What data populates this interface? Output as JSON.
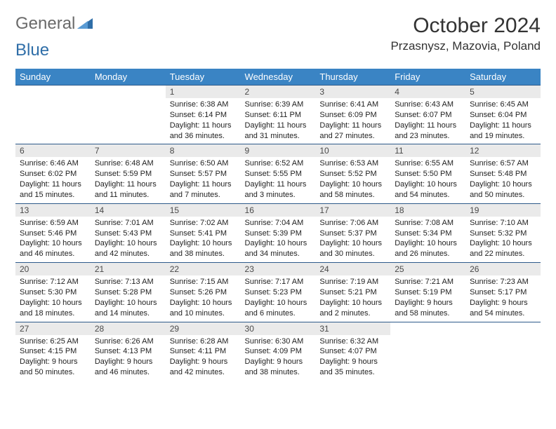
{
  "logo": {
    "text_part1": "General",
    "text_part2": "Blue",
    "color1": "#6a6a6a",
    "color2": "#2f6ea8",
    "triangle_color": "#2f6ea8"
  },
  "header": {
    "month_title": "October 2024",
    "location": "Przasnysz, Mazovia, Poland"
  },
  "colors": {
    "header_row_bg": "#3a84c4",
    "header_row_text": "#ffffff",
    "daynum_bg": "#eaeaea",
    "daynum_text": "#4a4a4a",
    "cell_border": "#2d5a8a",
    "body_text": "#222222",
    "background": "#ffffff"
  },
  "typography": {
    "month_title_fontsize": 30,
    "location_fontsize": 17,
    "header_row_fontsize": 13,
    "daynum_fontsize": 12,
    "daydata_fontsize": 11
  },
  "calendar": {
    "type": "table",
    "columns": [
      "Sunday",
      "Monday",
      "Tuesday",
      "Wednesday",
      "Thursday",
      "Friday",
      "Saturday"
    ],
    "weeks": [
      [
        null,
        null,
        {
          "day": "1",
          "sunrise": "6:38 AM",
          "sunset": "6:14 PM",
          "daylight": "11 hours and 36 minutes."
        },
        {
          "day": "2",
          "sunrise": "6:39 AM",
          "sunset": "6:11 PM",
          "daylight": "11 hours and 31 minutes."
        },
        {
          "day": "3",
          "sunrise": "6:41 AM",
          "sunset": "6:09 PM",
          "daylight": "11 hours and 27 minutes."
        },
        {
          "day": "4",
          "sunrise": "6:43 AM",
          "sunset": "6:07 PM",
          "daylight": "11 hours and 23 minutes."
        },
        {
          "day": "5",
          "sunrise": "6:45 AM",
          "sunset": "6:04 PM",
          "daylight": "11 hours and 19 minutes."
        }
      ],
      [
        {
          "day": "6",
          "sunrise": "6:46 AM",
          "sunset": "6:02 PM",
          "daylight": "11 hours and 15 minutes."
        },
        {
          "day": "7",
          "sunrise": "6:48 AM",
          "sunset": "5:59 PM",
          "daylight": "11 hours and 11 minutes."
        },
        {
          "day": "8",
          "sunrise": "6:50 AM",
          "sunset": "5:57 PM",
          "daylight": "11 hours and 7 minutes."
        },
        {
          "day": "9",
          "sunrise": "6:52 AM",
          "sunset": "5:55 PM",
          "daylight": "11 hours and 3 minutes."
        },
        {
          "day": "10",
          "sunrise": "6:53 AM",
          "sunset": "5:52 PM",
          "daylight": "10 hours and 58 minutes."
        },
        {
          "day": "11",
          "sunrise": "6:55 AM",
          "sunset": "5:50 PM",
          "daylight": "10 hours and 54 minutes."
        },
        {
          "day": "12",
          "sunrise": "6:57 AM",
          "sunset": "5:48 PM",
          "daylight": "10 hours and 50 minutes."
        }
      ],
      [
        {
          "day": "13",
          "sunrise": "6:59 AM",
          "sunset": "5:46 PM",
          "daylight": "10 hours and 46 minutes."
        },
        {
          "day": "14",
          "sunrise": "7:01 AM",
          "sunset": "5:43 PM",
          "daylight": "10 hours and 42 minutes."
        },
        {
          "day": "15",
          "sunrise": "7:02 AM",
          "sunset": "5:41 PM",
          "daylight": "10 hours and 38 minutes."
        },
        {
          "day": "16",
          "sunrise": "7:04 AM",
          "sunset": "5:39 PM",
          "daylight": "10 hours and 34 minutes."
        },
        {
          "day": "17",
          "sunrise": "7:06 AM",
          "sunset": "5:37 PM",
          "daylight": "10 hours and 30 minutes."
        },
        {
          "day": "18",
          "sunrise": "7:08 AM",
          "sunset": "5:34 PM",
          "daylight": "10 hours and 26 minutes."
        },
        {
          "day": "19",
          "sunrise": "7:10 AM",
          "sunset": "5:32 PM",
          "daylight": "10 hours and 22 minutes."
        }
      ],
      [
        {
          "day": "20",
          "sunrise": "7:12 AM",
          "sunset": "5:30 PM",
          "daylight": "10 hours and 18 minutes."
        },
        {
          "day": "21",
          "sunrise": "7:13 AM",
          "sunset": "5:28 PM",
          "daylight": "10 hours and 14 minutes."
        },
        {
          "day": "22",
          "sunrise": "7:15 AM",
          "sunset": "5:26 PM",
          "daylight": "10 hours and 10 minutes."
        },
        {
          "day": "23",
          "sunrise": "7:17 AM",
          "sunset": "5:23 PM",
          "daylight": "10 hours and 6 minutes."
        },
        {
          "day": "24",
          "sunrise": "7:19 AM",
          "sunset": "5:21 PM",
          "daylight": "10 hours and 2 minutes."
        },
        {
          "day": "25",
          "sunrise": "7:21 AM",
          "sunset": "5:19 PM",
          "daylight": "9 hours and 58 minutes."
        },
        {
          "day": "26",
          "sunrise": "7:23 AM",
          "sunset": "5:17 PM",
          "daylight": "9 hours and 54 minutes."
        }
      ],
      [
        {
          "day": "27",
          "sunrise": "6:25 AM",
          "sunset": "4:15 PM",
          "daylight": "9 hours and 50 minutes."
        },
        {
          "day": "28",
          "sunrise": "6:26 AM",
          "sunset": "4:13 PM",
          "daylight": "9 hours and 46 minutes."
        },
        {
          "day": "29",
          "sunrise": "6:28 AM",
          "sunset": "4:11 PM",
          "daylight": "9 hours and 42 minutes."
        },
        {
          "day": "30",
          "sunrise": "6:30 AM",
          "sunset": "4:09 PM",
          "daylight": "9 hours and 38 minutes."
        },
        {
          "day": "31",
          "sunrise": "6:32 AM",
          "sunset": "4:07 PM",
          "daylight": "9 hours and 35 minutes."
        },
        null,
        null
      ]
    ],
    "labels": {
      "sunrise_prefix": "Sunrise: ",
      "sunset_prefix": "Sunset: ",
      "daylight_prefix": "Daylight: "
    }
  }
}
